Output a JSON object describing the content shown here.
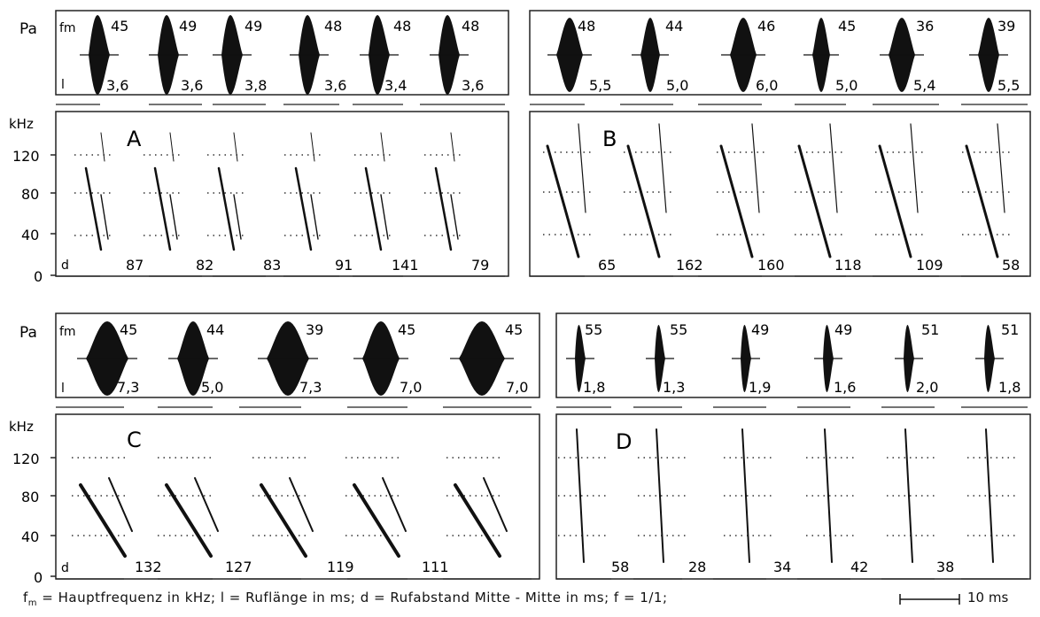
{
  "labels": {
    "pa": "Pa",
    "fm": "fm",
    "l": "l",
    "khz": "kHz",
    "d": "d",
    "y120": "120",
    "y80": "80",
    "y40": "40",
    "y0": "0"
  },
  "caption": {
    "fm_sym": "f",
    "fm_sub": "m",
    "text": " = Hauptfrequenz in kHz;  l = Ruflänge in ms;  d = Rufabstand Mitte - Mitte in ms;  f = 1/1;",
    "scale": "10 ms"
  },
  "panels": [
    {
      "letter": "A",
      "fm": [
        "45",
        "49",
        "49",
        "48",
        "48",
        "48"
      ],
      "l": [
        "3,6",
        "3,6",
        "3,8",
        "3,6",
        "3,4",
        "3,6"
      ],
      "d": [
        "87",
        "82",
        "83",
        "91",
        "141",
        "79"
      ]
    },
    {
      "letter": "B",
      "fm": [
        "48",
        "44",
        "46",
        "45",
        "36",
        "39"
      ],
      "l": [
        "5,5",
        "5,0",
        "6,0",
        "5,0",
        "5,4",
        "5,5"
      ],
      "d": [
        "65",
        "162",
        "160",
        "118",
        "109",
        "58"
      ]
    },
    {
      "letter": "C",
      "fm": [
        "45",
        "44",
        "39",
        "45",
        "45"
      ],
      "l": [
        "7,3",
        "5,0",
        "7,3",
        "7,0",
        "7,0"
      ],
      "d": [
        "132",
        "127",
        "119",
        "111"
      ]
    },
    {
      "letter": "D",
      "fm": [
        "55",
        "55",
        "49",
        "49",
        "51",
        "51"
      ],
      "l": [
        "1,8",
        "1,3",
        "1,9",
        "1,6",
        "2,0",
        "1,8"
      ],
      "d": [
        "58",
        "28",
        "34",
        "42",
        "38"
      ]
    }
  ]
}
